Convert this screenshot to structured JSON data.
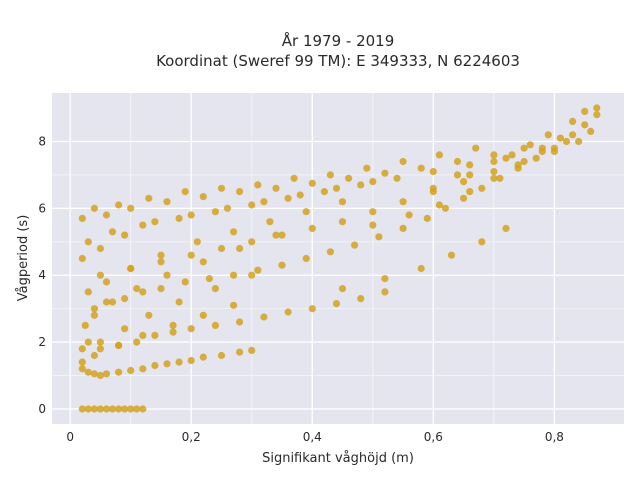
{
  "chart_data": {
    "type": "scatter",
    "title_line1": "År 1979 - 2019",
    "title_line2": "Koordinat (Sweref 99 TM): E 349333, N 6224603",
    "xlabel": "Signifikant våghöjd (m)",
    "ylabel": "Vågperiod (s)",
    "xlim": [
      -0.03,
      0.915
    ],
    "ylim": [
      -0.45,
      9.45
    ],
    "xticks": [
      0,
      0.2,
      0.4,
      0.6,
      0.8
    ],
    "xtick_labels": [
      "0",
      "0,2",
      "0,4",
      "0,6",
      "0,8"
    ],
    "yticks": [
      0,
      2,
      4,
      6,
      8
    ],
    "ytick_labels": [
      "0",
      "2",
      "4",
      "6",
      "8"
    ],
    "grid": true,
    "marker_color": "#D4A21F",
    "plot_background": "#E5E5EF",
    "series": [
      {
        "x": [
          0.02,
          0.03,
          0.04,
          0.05,
          0.06,
          0.07,
          0.08,
          0.09,
          0.1,
          0.11,
          0.12,
          0.02,
          0.03,
          0.04,
          0.05,
          0.06,
          0.08,
          0.1,
          0.12,
          0.14,
          0.16,
          0.18,
          0.2,
          0.22,
          0.25,
          0.28,
          0.3,
          0.03,
          0.05,
          0.08,
          0.11,
          0.14,
          0.17,
          0.2,
          0.24,
          0.28,
          0.32,
          0.36,
          0.4,
          0.44,
          0.48,
          0.52,
          0.04,
          0.06,
          0.09,
          0.12,
          0.15,
          0.19,
          0.23,
          0.27,
          0.31,
          0.35,
          0.39,
          0.43,
          0.47,
          0.51,
          0.55,
          0.59,
          0.62,
          0.65,
          0.68,
          0.71,
          0.74,
          0.77,
          0.8,
          0.83,
          0.85,
          0.87,
          0.05,
          0.1,
          0.15,
          0.2,
          0.25,
          0.3,
          0.35,
          0.4,
          0.45,
          0.5,
          0.55,
          0.6,
          0.65,
          0.7,
          0.75,
          0.8,
          0.84,
          0.86,
          0.03,
          0.07,
          0.12,
          0.18,
          0.24,
          0.3,
          0.36,
          0.42,
          0.48,
          0.54,
          0.6,
          0.66,
          0.72,
          0.78,
          0.82,
          0.06,
          0.1,
          0.16,
          0.22,
          0.28,
          0.34,
          0.4,
          0.46,
          0.52,
          0.58,
          0.64,
          0.7,
          0.76,
          0.02,
          0.04,
          0.08,
          0.13,
          0.19,
          0.25,
          0.31,
          0.37,
          0.43,
          0.49,
          0.55,
          0.61,
          0.67,
          0.02,
          0.05,
          0.09,
          0.14,
          0.2,
          0.26,
          0.32,
          0.38,
          0.44,
          0.5,
          0.03,
          0.06,
          0.1,
          0.15,
          0.21,
          0.27,
          0.33,
          0.39,
          0.45,
          0.025,
          0.04,
          0.07,
          0.11,
          0.16,
          0.22,
          0.28,
          0.34,
          0.02,
          0.05,
          0.09,
          0.13,
          0.18,
          0.24,
          0.3,
          0.02,
          0.04,
          0.08,
          0.12,
          0.17,
          0.22,
          0.27,
          0.45,
          0.52,
          0.58,
          0.63,
          0.68,
          0.72,
          0.5,
          0.56,
          0.61,
          0.66,
          0.7,
          0.74,
          0.78,
          0.81,
          0.64,
          0.7,
          0.75,
          0.79,
          0.83,
          0.6,
          0.66,
          0.73,
          0.85,
          0.87
        ],
        "y": [
          0,
          0,
          0,
          0,
          0,
          0,
          0,
          0,
          0,
          0,
          0,
          1.2,
          1.1,
          1.05,
          1.0,
          1.05,
          1.1,
          1.15,
          1.2,
          1.3,
          1.35,
          1.4,
          1.45,
          1.55,
          1.6,
          1.7,
          1.75,
          2.0,
          1.8,
          1.9,
          2.0,
          2.2,
          2.3,
          2.4,
          2.5,
          2.6,
          2.75,
          2.9,
          3.0,
          3.15,
          3.3,
          3.5,
          3.0,
          3.2,
          3.3,
          3.5,
          3.6,
          3.8,
          3.9,
          4.0,
          4.15,
          4.3,
          4.5,
          4.7,
          4.9,
          5.15,
          5.4,
          5.7,
          6.0,
          6.3,
          6.6,
          6.9,
          7.2,
          7.5,
          7.8,
          8.2,
          8.5,
          8.8,
          4.0,
          4.2,
          4.4,
          4.6,
          4.8,
          5.0,
          5.2,
          5.4,
          5.6,
          5.9,
          6.2,
          6.5,
          6.8,
          7.1,
          7.4,
          7.7,
          8.0,
          8.3,
          5.0,
          5.3,
          5.5,
          5.7,
          5.9,
          6.1,
          6.3,
          6.5,
          6.7,
          6.9,
          7.1,
          7.3,
          7.5,
          7.8,
          8.0,
          5.8,
          6.0,
          6.2,
          6.35,
          6.5,
          6.6,
          6.75,
          6.9,
          7.05,
          7.2,
          7.4,
          7.6,
          7.9,
          5.7,
          6.0,
          6.1,
          6.3,
          6.5,
          6.6,
          6.7,
          6.9,
          7.0,
          7.2,
          7.4,
          7.6,
          7.8,
          4.5,
          4.8,
          5.2,
          5.6,
          5.8,
          6.0,
          6.2,
          6.4,
          6.6,
          6.8,
          3.5,
          3.8,
          4.2,
          4.6,
          5.0,
          5.3,
          5.6,
          5.9,
          6.2,
          2.5,
          2.8,
          3.2,
          3.6,
          4.0,
          4.4,
          4.8,
          5.2,
          1.8,
          2.0,
          2.4,
          2.8,
          3.2,
          3.6,
          4.0,
          1.4,
          1.6,
          1.9,
          2.2,
          2.5,
          2.8,
          3.1,
          3.6,
          3.9,
          4.2,
          4.6,
          5.0,
          5.4,
          5.5,
          5.8,
          6.1,
          6.5,
          6.9,
          7.3,
          7.7,
          8.1,
          7.0,
          7.4,
          7.8,
          8.2,
          8.6,
          6.6,
          7.0,
          7.6,
          8.9,
          9.0
        ]
      }
    ]
  }
}
